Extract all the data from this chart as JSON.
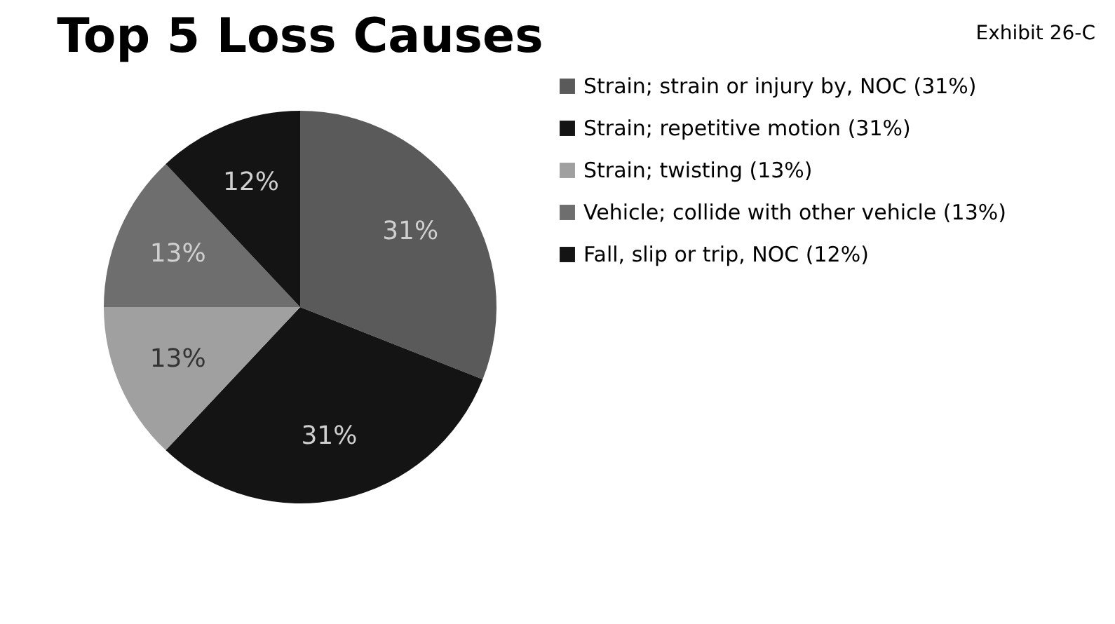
{
  "chart_data": {
    "type": "pie",
    "title": "Top 5 Loss Causes",
    "annotations": [
      "Exhibit 26-C"
    ],
    "categories": [
      "Strain; strain or injury by, NOC (31%)",
      "Strain; repetitive motion (31%)",
      "Strain; twisting (13%)",
      "Vehicle; collide with other vehicle (13%)",
      "Fall, slip or trip, NOC (12%)"
    ],
    "values": [
      31,
      31,
      13,
      13,
      12
    ],
    "value_labels": [
      "31%",
      "31%",
      "13%",
      "13%",
      "12%"
    ],
    "colors": [
      "#5a5a5a",
      "#141414",
      "#a0a0a0",
      "#6e6e6e",
      "#141414"
    ],
    "legend": "right"
  }
}
